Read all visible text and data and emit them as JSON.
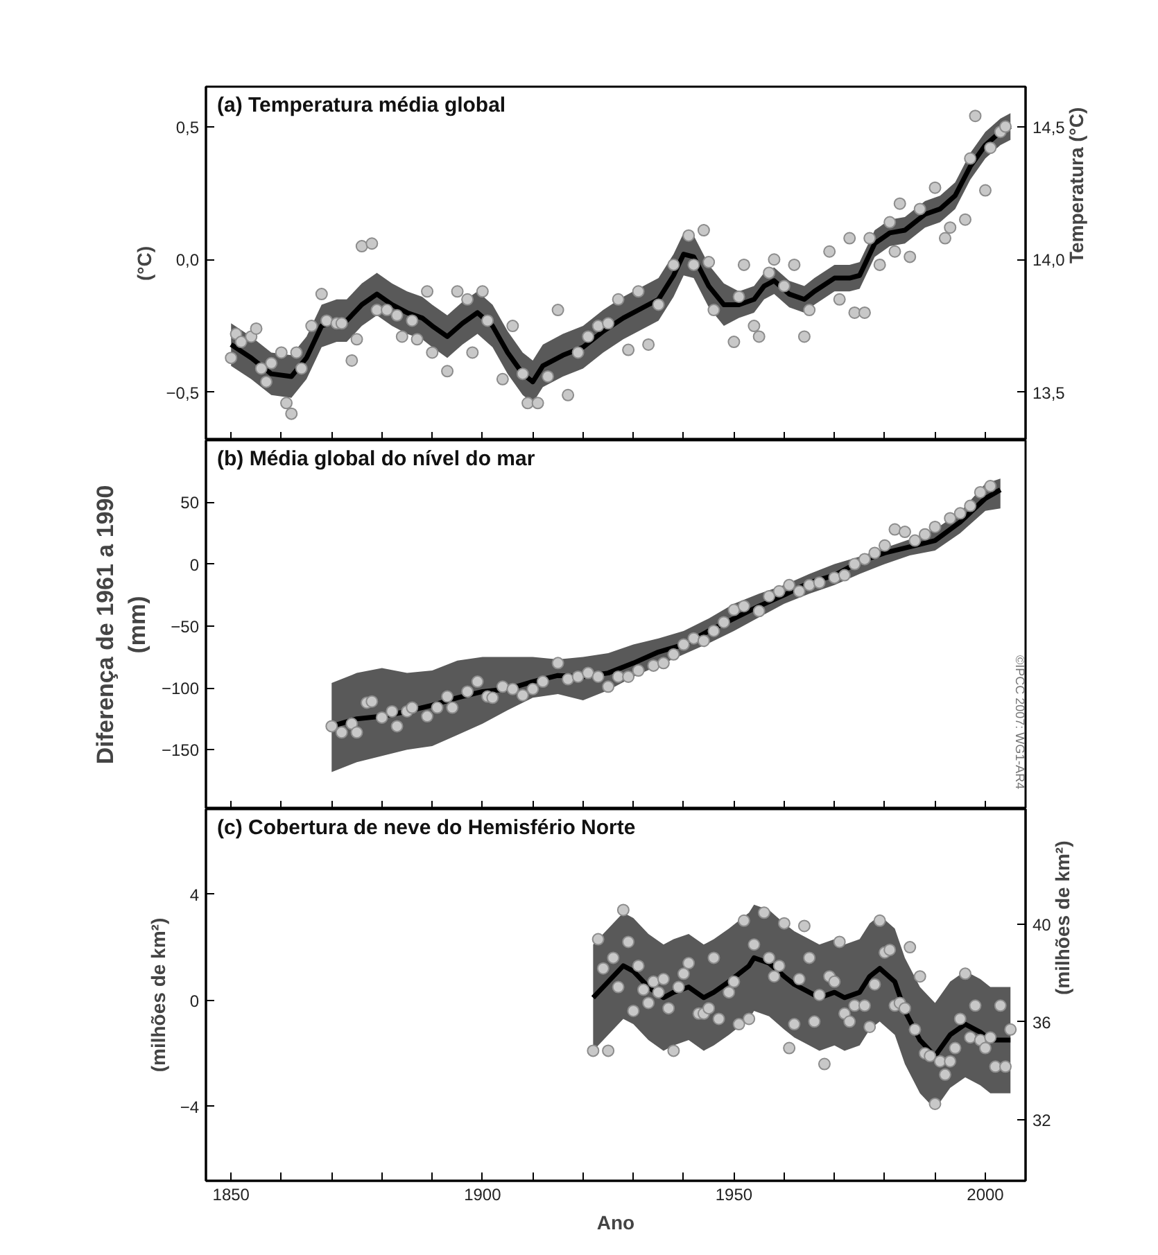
{
  "chart_data": [
    {
      "type": "scatter",
      "title": "(a) Temperatura média global",
      "ylabel": "(°C)",
      "y2label": "Temperatura (°C)",
      "xlim": [
        1845,
        2008
      ],
      "ylim": [
        -0.68,
        0.65
      ],
      "y2lim": [
        13.32,
        14.65
      ],
      "xticks": [
        1850,
        {
          "value": 1860,
          "label": null
        },
        {
          "value": 1870,
          "label": null
        },
        {
          "value": 1880,
          "label": null
        },
        {
          "value": 1890,
          "label": null
        },
        1900,
        {
          "value": 1910,
          "label": null
        },
        {
          "value": 1920,
          "label": null
        },
        {
          "value": 1930,
          "label": null
        },
        {
          "value": 1940,
          "label": null
        },
        1950,
        {
          "value": 1960,
          "label": null
        },
        {
          "value": 1970,
          "label": null
        },
        {
          "value": 1980,
          "label": null
        },
        {
          "value": 1990,
          "label": null
        },
        2000
      ],
      "yticks": [
        {
          "value": -0.5,
          "label": "−0,5"
        },
        {
          "value": 0,
          "label": "0,0"
        },
        {
          "value": 0.5,
          "label": "0,5"
        }
      ],
      "y2ticks": [
        {
          "value": 13.5,
          "label": "13,5"
        },
        {
          "value": 14.0,
          "label": "14,0"
        },
        {
          "value": 14.5,
          "label": "14,5"
        }
      ],
      "tick_labels": "y",
      "series": [
        {
          "marker": "circle",
          "color": "#c8c8c8",
          "x": [
            1850,
            1851,
            1852,
            1854,
            1855,
            1856,
            1857,
            1858,
            1860,
            1861,
            1862,
            1863,
            1864,
            1866,
            1868,
            1869,
            1871,
            1872,
            1874,
            1875,
            1876,
            1878,
            1879,
            1881,
            1883,
            1884,
            1886,
            1887,
            1889,
            1890,
            1893,
            1895,
            1897,
            1898,
            1900,
            1901,
            1904,
            1906,
            1908,
            1909,
            1911,
            1913,
            1915,
            1917,
            1919,
            1921,
            1923,
            1925,
            1927,
            1929,
            1931,
            1933,
            1935,
            1938,
            1941,
            1942,
            1944,
            1945,
            1946,
            1950,
            1951,
            1952,
            1954,
            1955,
            1957,
            1958,
            1960,
            1962,
            1964,
            1965,
            1969,
            1971,
            1973,
            1974,
            1976,
            1977,
            1979,
            1981,
            1982,
            1983,
            1985,
            1987,
            1990,
            1992,
            1993,
            1996,
            1997,
            1998,
            2000,
            2001,
            2003,
            2004
          ],
          "values": [
            -0.37,
            -0.28,
            -0.31,
            -0.29,
            -0.26,
            -0.41,
            -0.46,
            -0.39,
            -0.35,
            -0.54,
            -0.58,
            -0.35,
            -0.41,
            -0.25,
            -0.13,
            -0.23,
            -0.24,
            -0.24,
            -0.38,
            -0.3,
            0.05,
            0.06,
            -0.19,
            -0.19,
            -0.21,
            -0.29,
            -0.23,
            -0.3,
            -0.12,
            -0.35,
            -0.42,
            -0.12,
            -0.15,
            -0.35,
            -0.12,
            -0.23,
            -0.45,
            -0.25,
            -0.43,
            -0.54,
            -0.54,
            -0.44,
            -0.19,
            -0.51,
            -0.35,
            -0.29,
            -0.25,
            -0.24,
            -0.15,
            -0.34,
            -0.12,
            -0.32,
            -0.17,
            -0.02,
            0.09,
            -0.02,
            0.11,
            -0.01,
            -0.19,
            -0.31,
            -0.14,
            -0.02,
            -0.25,
            -0.29,
            -0.05,
            0.0,
            -0.1,
            -0.02,
            -0.29,
            -0.19,
            0.03,
            -0.15,
            0.08,
            -0.2,
            -0.2,
            0.08,
            -0.02,
            0.14,
            0.03,
            0.21,
            0.01,
            0.19,
            0.27,
            0.08,
            0.12,
            0.15,
            0.38,
            0.54,
            0.26,
            0.42,
            0.48,
            0.5
          ]
        },
        {
          "type": "line",
          "marker": "none",
          "color": "#000000",
          "x": [
            1850,
            1854,
            1858,
            1862,
            1865,
            1868,
            1871,
            1873,
            1876,
            1879,
            1882,
            1885,
            1888,
            1890,
            1893,
            1896,
            1899,
            1902,
            1905,
            1908,
            1910,
            1912,
            1916,
            1920,
            1924,
            1928,
            1932,
            1935,
            1938,
            1940,
            1942,
            1945,
            1948,
            1951,
            1954,
            1956,
            1958,
            1961,
            1964,
            1966,
            1970,
            1973,
            1975,
            1978,
            1981,
            1984,
            1988,
            1991,
            1994,
            1997,
            2000,
            2003,
            2005
          ],
          "values": [
            -0.32,
            -0.37,
            -0.43,
            -0.44,
            -0.37,
            -0.25,
            -0.23,
            -0.23,
            -0.17,
            -0.13,
            -0.17,
            -0.2,
            -0.22,
            -0.25,
            -0.29,
            -0.24,
            -0.2,
            -0.25,
            -0.35,
            -0.43,
            -0.46,
            -0.4,
            -0.36,
            -0.33,
            -0.27,
            -0.22,
            -0.18,
            -0.15,
            -0.06,
            0.02,
            0.01,
            -0.1,
            -0.17,
            -0.17,
            -0.15,
            -0.1,
            -0.08,
            -0.13,
            -0.15,
            -0.12,
            -0.07,
            -0.07,
            -0.06,
            0.06,
            0.1,
            0.11,
            0.17,
            0.19,
            0.24,
            0.35,
            0.43,
            0.48,
            0.5
          ],
          "upper": [
            -0.24,
            -0.29,
            -0.35,
            -0.36,
            -0.29,
            -0.17,
            -0.15,
            -0.15,
            -0.09,
            -0.05,
            -0.09,
            -0.12,
            -0.14,
            -0.17,
            -0.21,
            -0.16,
            -0.12,
            -0.17,
            -0.27,
            -0.35,
            -0.38,
            -0.32,
            -0.28,
            -0.25,
            -0.19,
            -0.14,
            -0.1,
            -0.07,
            0.02,
            0.1,
            0.09,
            -0.02,
            -0.09,
            -0.12,
            -0.1,
            -0.05,
            -0.03,
            -0.08,
            -0.1,
            -0.07,
            -0.02,
            -0.02,
            -0.01,
            0.11,
            0.15,
            0.16,
            0.22,
            0.24,
            0.29,
            0.4,
            0.48,
            0.53,
            0.55
          ],
          "lower": [
            -0.4,
            -0.45,
            -0.51,
            -0.52,
            -0.45,
            -0.33,
            -0.31,
            -0.31,
            -0.25,
            -0.21,
            -0.25,
            -0.28,
            -0.3,
            -0.33,
            -0.37,
            -0.32,
            -0.28,
            -0.33,
            -0.43,
            -0.51,
            -0.54,
            -0.48,
            -0.44,
            -0.41,
            -0.35,
            -0.3,
            -0.26,
            -0.23,
            -0.14,
            -0.06,
            -0.07,
            -0.18,
            -0.25,
            -0.22,
            -0.2,
            -0.15,
            -0.13,
            -0.18,
            -0.2,
            -0.17,
            -0.12,
            -0.12,
            -0.11,
            0.01,
            0.05,
            0.06,
            0.12,
            0.14,
            0.19,
            0.3,
            0.38,
            0.43,
            0.45
          ]
        }
      ]
    },
    {
      "type": "scatter",
      "title": "(b) Média global do nível do mar",
      "ylabel": "Diferença de 1961 a 1990\n(mm)",
      "xlim": [
        1845,
        2008
      ],
      "ylim": [
        -198,
        100
      ],
      "xticks": [
        1850,
        {
          "value": 1860,
          "label": null
        },
        {
          "value": 1870,
          "label": null
        },
        {
          "value": 1880,
          "label": null
        },
        {
          "value": 1890,
          "label": null
        },
        1900,
        {
          "value": 1910,
          "label": null
        },
        {
          "value": 1920,
          "label": null
        },
        {
          "value": 1930,
          "label": null
        },
        {
          "value": 1940,
          "label": null
        },
        1950,
        {
          "value": 1960,
          "label": null
        },
        {
          "value": 1970,
          "label": null
        },
        {
          "value": 1980,
          "label": null
        },
        {
          "value": 1990,
          "label": null
        },
        2000
      ],
      "yticks": [
        -150,
        -100,
        -50,
        0,
        50
      ],
      "tick_labels": "y",
      "annotations": [
        "©IPCC 2007: WG1-AR4"
      ],
      "series": [
        {
          "marker": "circle",
          "color": "#c8c8c8",
          "x": [
            1870,
            1872,
            1874,
            1875,
            1877,
            1878,
            1880,
            1882,
            1883,
            1885,
            1886,
            1889,
            1891,
            1893,
            1894,
            1897,
            1899,
            1901,
            1902,
            1904,
            1906,
            1908,
            1910,
            1912,
            1915,
            1917,
            1919,
            1921,
            1923,
            1925,
            1927,
            1929,
            1931,
            1934,
            1936,
            1938,
            1940,
            1942,
            1944,
            1946,
            1948,
            1950,
            1952,
            1955,
            1957,
            1959,
            1961,
            1963,
            1965,
            1967,
            1970,
            1972,
            1974,
            1976,
            1978,
            1980,
            1982,
            1984,
            1986,
            1988,
            1990,
            1993,
            1995,
            1997,
            1999,
            2001
          ],
          "values": [
            -131,
            -136,
            -129,
            -136,
            -112,
            -111,
            -124,
            -119,
            -131,
            -119,
            -116,
            -123,
            -116,
            -107,
            -116,
            -103,
            -95,
            -107,
            -108,
            -99,
            -101,
            -106,
            -101,
            -95,
            -80,
            -93,
            -91,
            -88,
            -91,
            -99,
            -91,
            -91,
            -86,
            -82,
            -80,
            -73,
            -65,
            -60,
            -62,
            -54,
            -47,
            -37,
            -34,
            -38,
            -26,
            -22,
            -17,
            -22,
            -17,
            -15,
            -11,
            -9,
            0,
            4,
            9,
            15,
            28,
            26,
            19,
            24,
            30,
            37,
            41,
            47,
            58,
            63
          ]
        },
        {
          "type": "line",
          "marker": "none",
          "color": "#000000",
          "x": [
            1870,
            1875,
            1880,
            1885,
            1890,
            1895,
            1900,
            1905,
            1910,
            1915,
            1920,
            1925,
            1930,
            1935,
            1940,
            1945,
            1950,
            1955,
            1960,
            1965,
            1970,
            1975,
            1980,
            1985,
            1990,
            1995,
            2000,
            2003
          ],
          "values": [
            -131,
            -125,
            -123,
            -119,
            -114,
            -108,
            -103,
            -101,
            -95,
            -90,
            -91,
            -88,
            -80,
            -71,
            -65,
            -54,
            -44,
            -34,
            -25,
            -15,
            -9,
            2,
            9,
            14,
            19,
            34,
            53,
            60
          ],
          "upper": [
            -96,
            -88,
            -84,
            -88,
            -86,
            -78,
            -75,
            -75,
            -75,
            -77,
            -75,
            -72,
            -65,
            -60,
            -54,
            -44,
            -32,
            -24,
            -17,
            -8,
            0,
            6,
            13,
            20,
            28,
            42,
            65,
            69
          ],
          "lower": [
            -168,
            -160,
            -155,
            -150,
            -147,
            -138,
            -129,
            -118,
            -108,
            -105,
            -110,
            -102,
            -91,
            -82,
            -73,
            -64,
            -54,
            -43,
            -32,
            -24,
            -17,
            -8,
            0,
            7,
            11,
            25,
            43,
            45
          ]
        }
      ]
    },
    {
      "type": "scatter",
      "title": "(c) Cobertura de neve do Hemisfério Norte",
      "xlabel": "Ano",
      "ylabel": "(milhões de km²)",
      "y2label": "(milhões de km²)",
      "xlim": [
        1845,
        2008
      ],
      "ylim": [
        -6.8,
        7.2
      ],
      "y2lim": [
        29.5,
        44.7
      ],
      "xticks": [
        1850,
        {
          "value": 1860,
          "label": null
        },
        {
          "value": 1870,
          "label": null
        },
        {
          "value": 1880,
          "label": null
        },
        {
          "value": 1890,
          "label": null
        },
        1900,
        {
          "value": 1910,
          "label": null
        },
        {
          "value": 1920,
          "label": null
        },
        {
          "value": 1930,
          "label": null
        },
        {
          "value": 1940,
          "label": null
        },
        1950,
        {
          "value": 1960,
          "label": null
        },
        {
          "value": 1970,
          "label": null
        },
        {
          "value": 1980,
          "label": null
        },
        {
          "value": 1990,
          "label": null
        },
        2000
      ],
      "yticks": [
        -4,
        0,
        4
      ],
      "y2ticks": [
        32,
        36,
        40
      ],
      "series": [
        {
          "marker": "circle",
          "color": "#c8c8c8",
          "x": [
            1922,
            1923,
            1924,
            1925,
            1926,
            1927,
            1928,
            1929,
            1930,
            1931,
            1932,
            1933,
            1934,
            1935,
            1936,
            1937,
            1938,
            1939,
            1940,
            1941,
            1943,
            1944,
            1945,
            1946,
            1947,
            1949,
            1950,
            1951,
            1952,
            1953,
            1954,
            1956,
            1957,
            1958,
            1959,
            1960,
            1961,
            1962,
            1963,
            1964,
            1965,
            1966,
            1967,
            1968,
            1969,
            1970,
            1971,
            1972,
            1973,
            1974,
            1976,
            1977,
            1978,
            1979,
            1980,
            1981,
            1982,
            1983,
            1984,
            1985,
            1986,
            1987,
            1988,
            1989,
            1990,
            1991,
            1992,
            1993,
            1994,
            1995,
            1996,
            1997,
            1998,
            1999,
            2000,
            2001,
            2002,
            2003,
            2004,
            2005
          ],
          "values": [
            -1.9,
            2.3,
            1.2,
            -1.9,
            1.6,
            0.5,
            3.4,
            2.2,
            -0.4,
            1.3,
            0.4,
            -0.1,
            0.7,
            0.3,
            0.8,
            -0.3,
            -1.9,
            0.5,
            1.0,
            1.4,
            -0.5,
            -0.5,
            -0.3,
            1.6,
            -0.7,
            0.3,
            0.7,
            -0.9,
            3.0,
            -0.7,
            2.1,
            3.3,
            1.6,
            0.9,
            1.3,
            2.9,
            -1.8,
            -0.9,
            0.8,
            2.8,
            1.6,
            -0.8,
            0.2,
            -2.4,
            0.9,
            0.7,
            2.2,
            -0.5,
            -0.8,
            -0.2,
            -0.2,
            -1.0,
            0.6,
            3.0,
            1.8,
            1.9,
            -0.2,
            -0.1,
            -0.3,
            2.0,
            -1.1,
            0.9,
            -2.0,
            -2.1,
            -3.9,
            -2.3,
            -2.8,
            -2.3,
            -1.8,
            -0.7,
            1.0,
            -1.4,
            -0.2,
            -1.5,
            -1.8,
            -1.4,
            -2.5,
            -0.2,
            -2.5,
            -1.1
          ]
        },
        {
          "type": "line",
          "marker": "none",
          "color": "#000000",
          "x": [
            1922,
            1925,
            1928,
            1930,
            1933,
            1936,
            1938,
            1941,
            1944,
            1946,
            1949,
            1953,
            1954,
            1957,
            1960,
            1962,
            1965,
            1967,
            1970,
            1972,
            1975,
            1977,
            1979,
            1982,
            1984,
            1987,
            1990,
            1993,
            1996,
            1999,
            2001,
            2005
          ],
          "values": [
            0.1,
            0.7,
            1.3,
            1.1,
            0.5,
            0.1,
            0.3,
            0.5,
            0.1,
            0.3,
            0.7,
            1.3,
            1.6,
            1.4,
            0.9,
            0.6,
            0.3,
            0.1,
            0.3,
            0.1,
            0.3,
            0.9,
            1.2,
            0.7,
            -0.4,
            -1.5,
            -2.1,
            -1.3,
            -0.9,
            -1.2,
            -1.5,
            -1.5
          ],
          "upper": [
            2.1,
            2.7,
            3.3,
            3.1,
            2.5,
            2.1,
            2.3,
            2.5,
            2.1,
            2.3,
            2.7,
            3.3,
            3.6,
            3.4,
            2.9,
            2.6,
            2.3,
            2.1,
            2.3,
            2.1,
            2.3,
            2.9,
            3.2,
            2.7,
            1.6,
            0.5,
            -0.1,
            0.7,
            1.1,
            0.8,
            0.5,
            0.5
          ],
          "lower": [
            -1.9,
            -1.3,
            -0.7,
            -0.9,
            -1.5,
            -1.9,
            -1.7,
            -1.5,
            -1.9,
            -1.7,
            -1.3,
            -0.7,
            -0.4,
            -0.6,
            -1.1,
            -1.4,
            -1.7,
            -1.9,
            -1.7,
            -1.9,
            -1.7,
            -1.1,
            -0.8,
            -1.3,
            -2.4,
            -3.5,
            -4.1,
            -3.3,
            -2.9,
            -3.2,
            -3.5,
            -3.5
          ]
        }
      ]
    }
  ]
}
